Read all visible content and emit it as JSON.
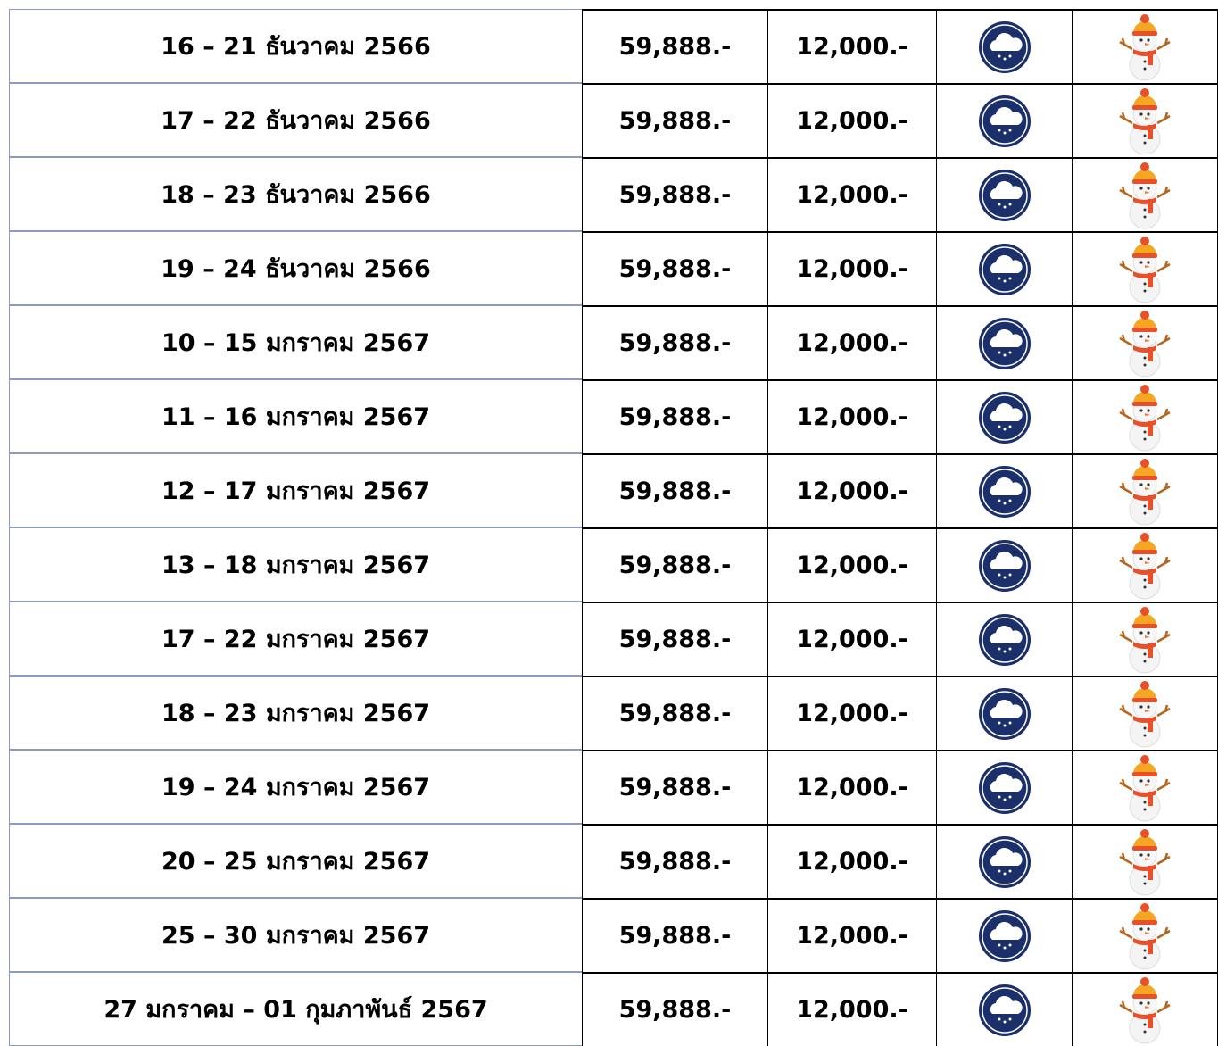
{
  "table": {
    "rows": [
      [
        "16 – 21  ธันวาคม 2566",
        "59,888.-",
        "12,000.-"
      ],
      [
        "17 – 22  ธันวาคม 2566",
        "59,888.-",
        "12,000.-"
      ],
      [
        "18 – 23  ธันวาคม 2566",
        "59,888.-",
        "12,000.-"
      ],
      [
        "19 – 24  ธันวาคม 2566",
        "59,888.-",
        "12,000.-"
      ],
      [
        "10 – 15  มกราคม 2567",
        "59,888.-",
        "12,000.-"
      ],
      [
        "11 – 16  มกราคม 2567",
        "59,888.-",
        "12,000.-"
      ],
      [
        "12 – 17  มกราคม 2567",
        "59,888.-",
        "12,000.-"
      ],
      [
        "13 – 18  มกราคม 2567",
        "59,888.-",
        "12,000.-"
      ],
      [
        "17 – 22  มกราคม 2567",
        "59,888.-",
        "12,000.-"
      ],
      [
        "18 – 23  มกราคม 2567",
        "59,888.-",
        "12,000.-"
      ],
      [
        "19 – 24  มกราคม 2567",
        "59,888.-",
        "12,000.-"
      ],
      [
        "20 – 25  มกราคม 2567",
        "59,888.-",
        "12,000.-"
      ],
      [
        "25 – 30  มกราคม 2567",
        "59,888.-",
        "12,000.-"
      ],
      [
        "27 มกราคม – 01 กุมภาพันธ์ 2567",
        "59,888.-",
        "12,000.-"
      ]
    ]
  }
}
